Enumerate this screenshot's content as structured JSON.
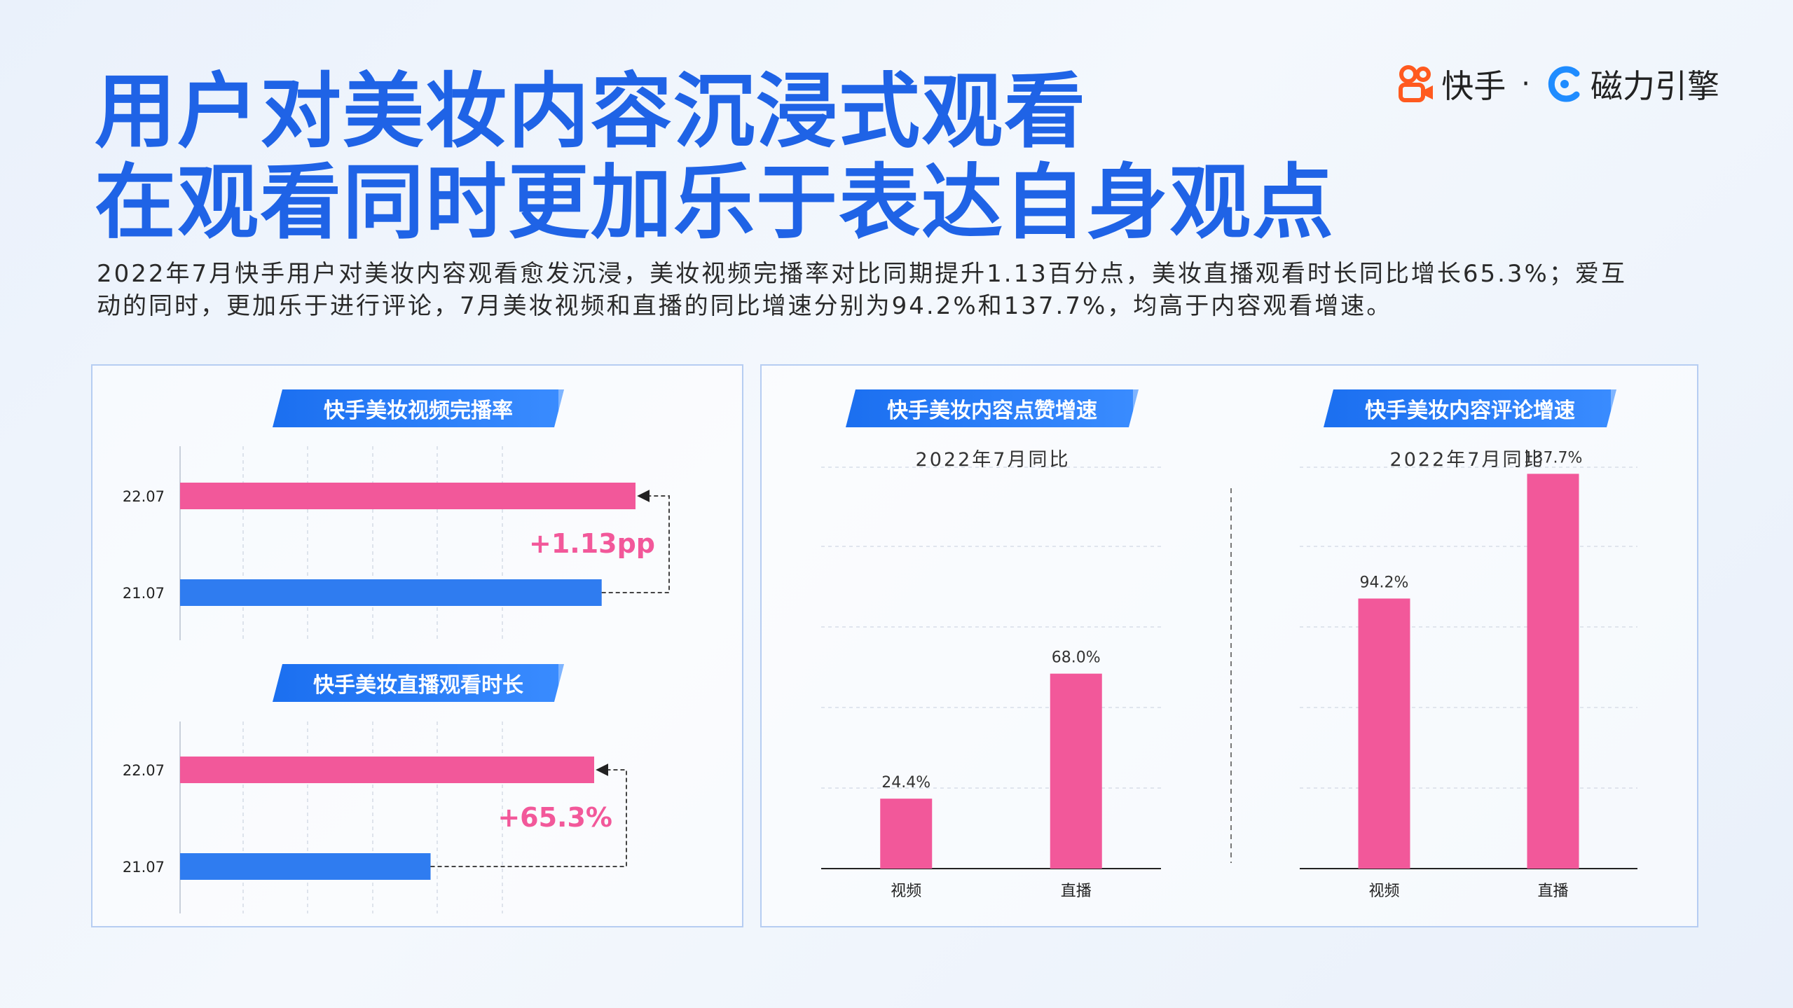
{
  "title": {
    "line1": "用户对美妆内容沉浸式观看",
    "line2": "在观看同时更加乐于表达自身观点"
  },
  "brand": {
    "kuaishou": "快手",
    "separator": "·",
    "cili": "磁力引擎"
  },
  "description": {
    "line1": "2022年7月快手用户对美妆内容观看愈发沉浸，美妆视频完播率对比同期提升1.13百分点，美妆直播观看时长同比增长65.3%；爱互",
    "line2": "动的同时，更加乐于进行评论，7月美妆视频和直播的同比增速分别为94.2%和137.7%，均高于内容观看增速。"
  },
  "colors": {
    "pink": "#f2589a",
    "blue": "#2f7cf0",
    "title_blue": "#1f63e6"
  },
  "chart_data": [
    {
      "type": "bar",
      "orientation": "horizontal",
      "title": "快手美妆视频完播率",
      "categories": [
        "22.07",
        "21.07"
      ],
      "values": [
        0.875,
        0.81
      ],
      "value_unit": "relative",
      "annotation": "+1.13pp"
    },
    {
      "type": "bar",
      "orientation": "horizontal",
      "title": "快手美妆直播观看时长",
      "categories": [
        "22.07",
        "21.07"
      ],
      "values": [
        1.653,
        1.0
      ],
      "value_unit": "relative",
      "annotation": "+65.3%"
    },
    {
      "type": "bar",
      "title": "快手美妆内容点赞增速",
      "subtitle": "2022年7月同比",
      "categories": [
        "视频",
        "直播"
      ],
      "values": [
        24.4,
        68.0
      ],
      "value_labels": [
        "24.4%",
        "68.0%"
      ],
      "ylim": [
        0,
        140
      ]
    },
    {
      "type": "bar",
      "title": "快手美妆内容评论增速",
      "subtitle": "2022年7月同比",
      "categories": [
        "视频",
        "直播"
      ],
      "values": [
        94.2,
        137.7
      ],
      "value_labels": [
        "94.2%",
        "137.7%"
      ],
      "ylim": [
        0,
        140
      ]
    }
  ]
}
